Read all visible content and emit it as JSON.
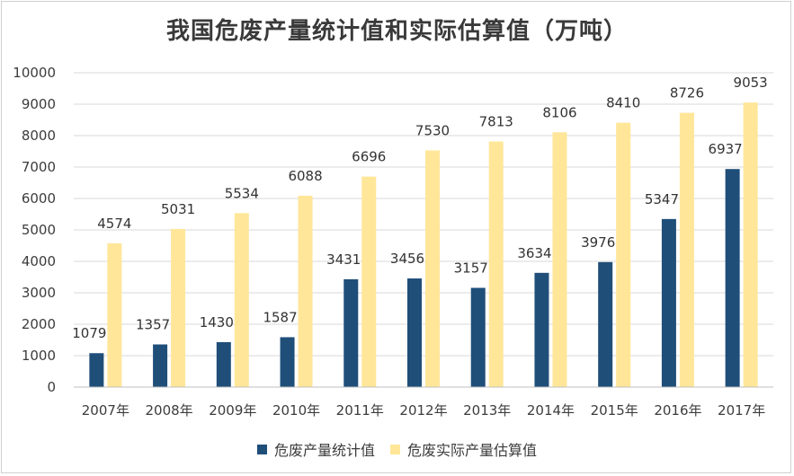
{
  "chart_data": {
    "type": "bar",
    "title": "我国危废产量统计值和实际估算值（万吨）",
    "categories": [
      "2007年",
      "2008年",
      "2009年",
      "2010年",
      "2011年",
      "2012年",
      "2013年",
      "2014年",
      "2015年",
      "2016年",
      "2017年"
    ],
    "series": [
      {
        "name": "危废产量统计值",
        "color": "#1f4e79",
        "values": [
          1079,
          1357,
          1430,
          1587,
          3431,
          3456,
          3157,
          3634,
          3976,
          5347,
          6937
        ]
      },
      {
        "name": "危废实际产量估算值",
        "color": "#ffe699",
        "values": [
          4574,
          5031,
          5534,
          6088,
          6696,
          7530,
          7813,
          8106,
          8410,
          8726,
          9053
        ]
      }
    ],
    "ylim": [
      0,
      10000
    ],
    "yticks": [
      0,
      1000,
      2000,
      3000,
      4000,
      5000,
      6000,
      7000,
      8000,
      9000,
      10000
    ],
    "grid": true,
    "legend": "bottom",
    "xlabel": "",
    "ylabel": ""
  }
}
